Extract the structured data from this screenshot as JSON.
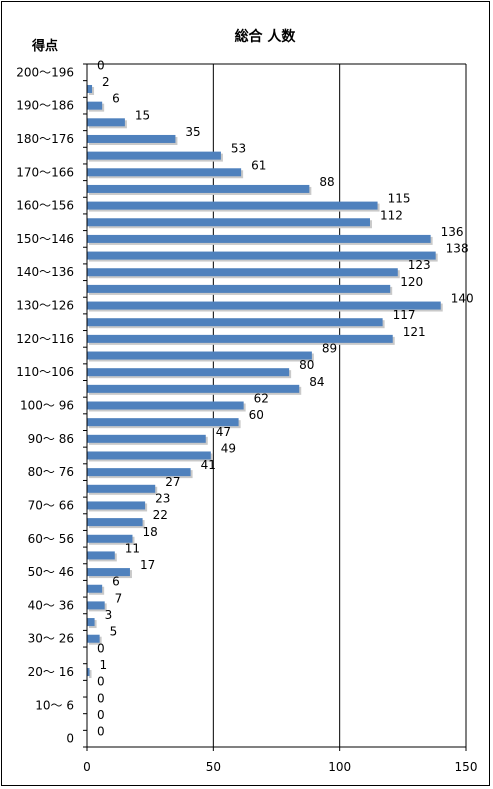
{
  "chart_data": {
    "type": "bar",
    "orientation": "horizontal",
    "title": "総合 人数",
    "ylabel": "得点",
    "xlabel": "",
    "xlim": [
      0,
      150
    ],
    "x_ticks": [
      "0",
      "50",
      "100",
      "150"
    ],
    "grid": "vertical lines at 50 and 100",
    "bar_color": "#4f81bd",
    "y_tick_labels": [
      "200～196",
      "190～186",
      "180～176",
      "170～166",
      "160～156",
      "150～146",
      "140～136",
      "130～126",
      "120～116",
      "110～106",
      "100～ 96",
      "90～ 86",
      "80～ 76",
      "70～ 66",
      "60～ 56",
      "50～ 46",
      "40～ 36",
      "30～ 26",
      "20～ 16",
      "10～ 6",
      "0"
    ],
    "values": [
      0,
      2,
      6,
      15,
      35,
      53,
      61,
      88,
      115,
      112,
      136,
      138,
      123,
      120,
      140,
      117,
      121,
      89,
      80,
      84,
      62,
      60,
      47,
      49,
      41,
      27,
      23,
      22,
      18,
      11,
      17,
      6,
      7,
      3,
      5,
      0,
      1,
      0,
      0,
      0,
      0
    ]
  }
}
